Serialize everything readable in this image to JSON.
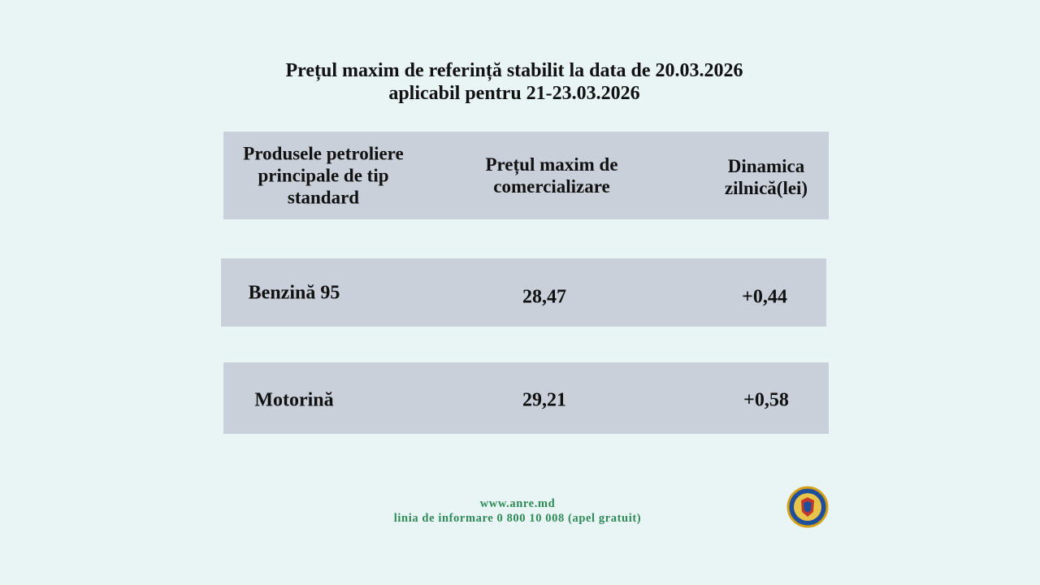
{
  "title": [
    "Prețul maxim de referință stabilit la data de 20.03.2026",
    "aplicabil pentru 21-23.03.2026"
  ],
  "table": {
    "header": [
      [
        "Produsele petroliere",
        "principale de tip",
        "standard"
      ],
      [
        "Prețul maxim de",
        "comercializare"
      ],
      [
        "Dinamica",
        "zilnică(lei)"
      ]
    ],
    "rows": [
      [
        "Benzină 95",
        "28,47",
        "+0,44"
      ],
      [
        "Motorină",
        "29,21",
        "+0,58"
      ]
    ]
  },
  "footer": [
    "www.anre.md",
    "linia de informare 0 800 10 008 (apel gratuit)"
  ]
}
